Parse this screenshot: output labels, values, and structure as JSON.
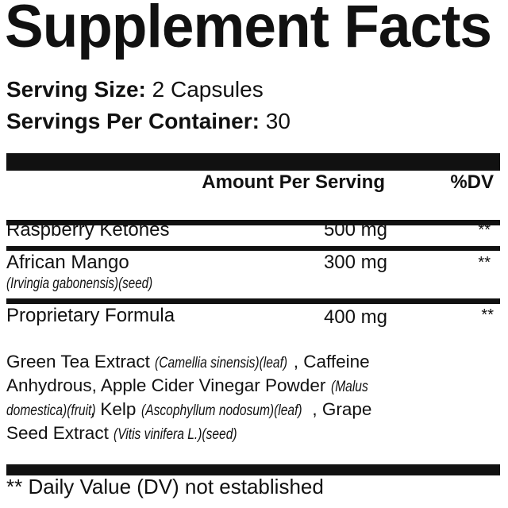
{
  "title": "Supplement Facts",
  "serving_size": {
    "label": "Serving Size:",
    "value": " 2 Capsules"
  },
  "servings_per_container": {
    "label": "Servings Per Container:",
    "value": " 30"
  },
  "header": {
    "amount": "Amount Per Serving",
    "dv": "%DV"
  },
  "rows": [
    {
      "name": "Raspberry Ketones",
      "amount": "500 mg",
      "dv": "**"
    },
    {
      "name": "African Mango",
      "sub": "(Irvingia gabonensis)(seed)",
      "amount": "300 mg",
      "dv": "**"
    },
    {
      "name": "Proprietary Formula",
      "amount": "400 mg",
      "dv": "**"
    }
  ],
  "blend_lines": [
    [
      {
        "t": "Green Tea Extract "
      },
      {
        "i": "(Camellia sinensis)(leaf)"
      },
      {
        "t": ", Caffeine"
      }
    ],
    [
      {
        "t": "Anhydrous, Apple Cider Vinegar Powder "
      },
      {
        "i": "(Malus"
      }
    ],
    [
      {
        "i": "domestica)(fruit)"
      },
      {
        "t": ", Kelp "
      },
      {
        "i": "(Ascophyllum nodosum)(leaf)"
      },
      {
        "t": ", Grape"
      }
    ],
    [
      {
        "t": "Seed Extract "
      },
      {
        "i": "(Vitis vinifera L.)(seed)"
      }
    ]
  ],
  "footnote": "** Daily Value (DV) not established"
}
